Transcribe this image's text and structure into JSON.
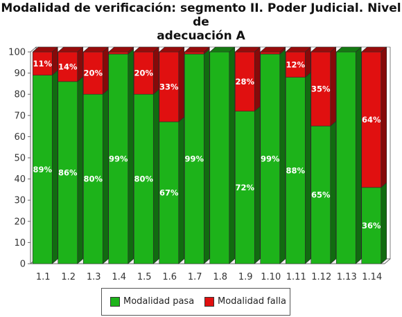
{
  "chart_data": {
    "type": "bar",
    "stacked": true,
    "title_lines": [
      "Modalidad de verificación: segmento II. Poder Judicial. Nivel de",
      "adecuación A"
    ],
    "categories": [
      "1.1",
      "1.2",
      "1.3",
      "1.4",
      "1.5",
      "1.6",
      "1.7",
      "1.8",
      "1.9",
      "1.10",
      "1.11",
      "1.12",
      "1.13",
      "1.14"
    ],
    "series": [
      {
        "name": "Modalidad pasa",
        "color": "#1db31a",
        "values": [
          89,
          86,
          80,
          99,
          80,
          67,
          99,
          100,
          72,
          99,
          88,
          65,
          100,
          36
        ],
        "labels": [
          "89%",
          "86%",
          "80%",
          "99%",
          "80%",
          "67%",
          "99%",
          "",
          "72%",
          "99%",
          "88%",
          "65%",
          "",
          "36%"
        ]
      },
      {
        "name": "Modalidad falla",
        "color": "#e01010",
        "values": [
          11,
          14,
          20,
          1,
          20,
          33,
          1,
          0,
          28,
          1,
          12,
          35,
          0,
          64
        ],
        "labels": [
          "11%",
          "14%",
          "20%",
          "",
          "20%",
          "33%",
          "",
          "",
          "28%",
          "",
          "12%",
          "35%",
          "",
          "64%"
        ]
      }
    ],
    "ylim": [
      0,
      100
    ],
    "yticks": [
      "0",
      "10",
      "20",
      "30",
      "40",
      "50",
      "60",
      "70",
      "80",
      "90",
      "100"
    ],
    "grid": false,
    "legend_position": "bottom"
  }
}
